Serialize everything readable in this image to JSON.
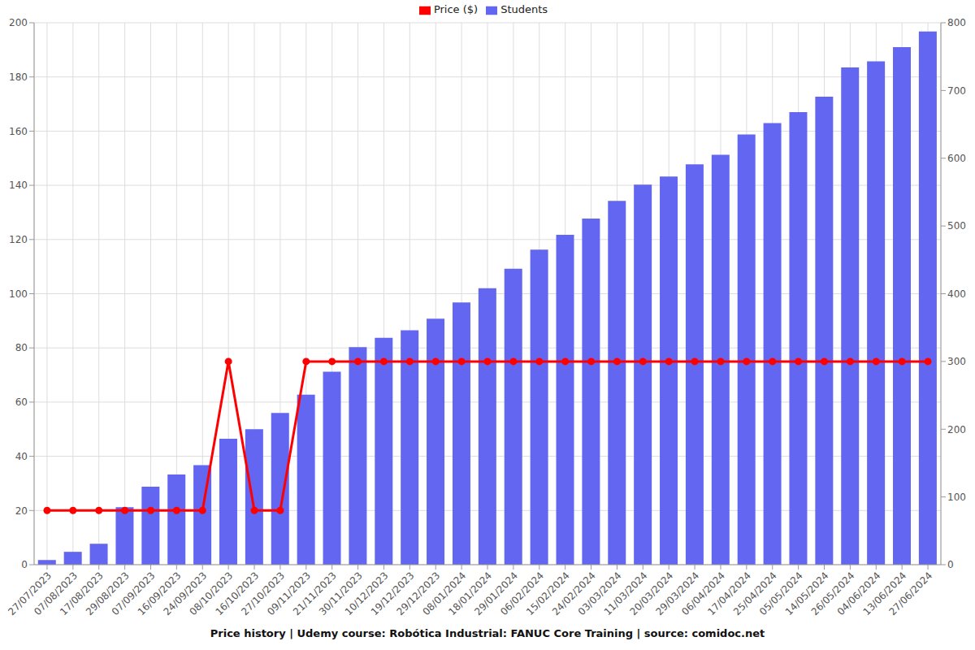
{
  "chart_data": {
    "type": "bar_line",
    "title": "Price history | Udemy course: Robótica Industrial: FANUC Core Training | source: comidoc.net",
    "categories": [
      "27/07/2023",
      "07/08/2023",
      "17/08/2023",
      "29/08/2023",
      "07/09/2023",
      "16/09/2023",
      "24/09/2023",
      "08/10/2023",
      "16/10/2023",
      "27/10/2023",
      "09/11/2023",
      "21/11/2023",
      "30/11/2023",
      "10/12/2023",
      "19/12/2023",
      "29/12/2023",
      "08/01/2024",
      "18/01/2024",
      "29/01/2024",
      "06/02/2024",
      "15/02/2024",
      "24/02/2024",
      "03/03/2024",
      "11/03/2024",
      "20/03/2024",
      "29/03/2024",
      "06/04/2024",
      "17/04/2024",
      "25/04/2024",
      "05/05/2024",
      "14/05/2024",
      "26/05/2024",
      "04/06/2024",
      "13/06/2024",
      "27/06/2024"
    ],
    "series": [
      {
        "name": "Price ($)",
        "type": "line",
        "color": "#ff0000",
        "marker": "circle",
        "values": [
          20,
          20,
          20,
          20,
          20,
          20,
          20,
          75,
          20,
          20,
          75,
          75,
          75,
          75,
          75,
          75,
          75,
          75,
          75,
          75,
          75,
          75,
          75,
          75,
          75,
          75,
          75,
          75,
          75,
          75,
          75,
          75,
          75,
          75,
          75
        ]
      },
      {
        "name": "Students",
        "type": "bar",
        "color": "#6366f1",
        "axis": "y2",
        "values": [
          7,
          19,
          31,
          85,
          115,
          133,
          147,
          186,
          200,
          224,
          251,
          285,
          321,
          335,
          346,
          363,
          387,
          408,
          437,
          465,
          487,
          511,
          537,
          561,
          573,
          591,
          605,
          635,
          652,
          668,
          691,
          734,
          743,
          764,
          787
        ]
      }
    ],
    "ylim": [
      0,
      200
    ],
    "yticks": [
      0,
      20,
      40,
      60,
      80,
      100,
      120,
      140,
      160,
      180,
      200
    ],
    "y2lim": [
      0,
      800
    ],
    "y2ticks": [
      0,
      100,
      200,
      300,
      400,
      500,
      600,
      700,
      800
    ],
    "grid": true,
    "legend": "top"
  }
}
